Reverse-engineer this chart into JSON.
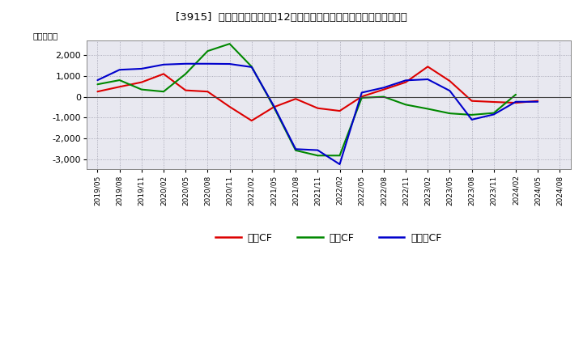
{
  "title": "[3915]  キャッシュフローの12か月移動合計の対前年同期増減額の推移",
  "ylabel": "（百万円）",
  "background_color": "#ffffff",
  "plot_bg_color": "#e8e8f0",
  "grid_color": "#888899",
  "x_labels": [
    "2019/05",
    "2019/08",
    "2019/11",
    "2020/02",
    "2020/05",
    "2020/08",
    "2020/11",
    "2021/02",
    "2021/05",
    "2021/08",
    "2021/11",
    "2022/02",
    "2022/05",
    "2022/08",
    "2022/11",
    "2023/02",
    "2023/05",
    "2023/08",
    "2023/11",
    "2024/02",
    "2024/05",
    "2024/08"
  ],
  "series_order": [
    "営業CF",
    "投資CF",
    "フリーCF"
  ],
  "series": {
    "営業CF": {
      "color": "#dd0000",
      "values": [
        250,
        480,
        700,
        1100,
        310,
        250,
        -480,
        -1150,
        -500,
        -100,
        -550,
        -680,
        10,
        350,
        700,
        1450,
        760,
        -200,
        -250,
        -290,
        -200,
        null
      ]
    },
    "投資CF": {
      "color": "#008800",
      "values": [
        600,
        800,
        350,
        250,
        1100,
        2200,
        2550,
        1450,
        -480,
        -2580,
        -2830,
        -2830,
        -50,
        0,
        -380,
        -580,
        -800,
        -870,
        -780,
        110,
        null,
        null
      ]
    },
    "フリーCF": {
      "color": "#0000cc",
      "values": [
        800,
        1300,
        1350,
        1550,
        1590,
        1590,
        1580,
        1430,
        -430,
        -2520,
        -2570,
        -3250,
        200,
        440,
        790,
        840,
        290,
        -1100,
        -850,
        -240,
        -240,
        null
      ]
    }
  },
  "ylim": [
    -3500,
    2700
  ],
  "yticks": [
    -3000,
    -2000,
    -1000,
    0,
    1000,
    2000
  ],
  "legend_labels": [
    "営業CF",
    "投資CF",
    "フリーCF"
  ],
  "legend_colors": [
    "#dd0000",
    "#008800",
    "#0000cc"
  ]
}
